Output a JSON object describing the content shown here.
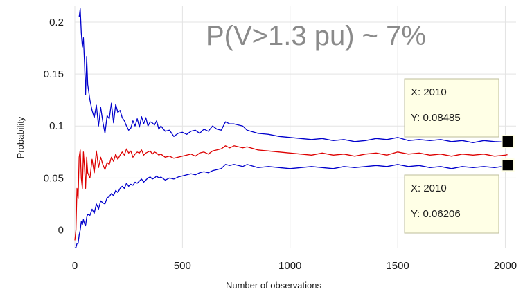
{
  "chart_data": {
    "type": "line",
    "title": "",
    "xlabel": "Number of observations",
    "ylabel": "Probability",
    "xlim": [
      0,
      2050
    ],
    "ylim": [
      -0.017,
      0.216
    ],
    "x_ticks": [
      0,
      500,
      1000,
      1500,
      2000
    ],
    "x_tick_labels": [
      "0",
      "500",
      "1000",
      "1500",
      "2000"
    ],
    "y_ticks": [
      0,
      0.05,
      0.1,
      0.15,
      0.2
    ],
    "y_tick_labels": [
      "0",
      "0.05",
      "0.1",
      "0.15",
      "0.2"
    ],
    "grid": true,
    "annotation": "P(V>1.3 pu) ~ 7%",
    "colors": {
      "upper": "#0000cc",
      "estimate": "#dd0000",
      "lower": "#0000cc",
      "grid": "#e3e3e3",
      "datatip_bg": "#ffffe6",
      "datatip_border": "#bdbd9a",
      "marker": "#000000"
    },
    "series": [
      {
        "key": "upper",
        "x": [
          20,
          25,
          30,
          35,
          40,
          45,
          50,
          55,
          60,
          70,
          80,
          90,
          100,
          110,
          120,
          130,
          140,
          150,
          160,
          170,
          180,
          190,
          200,
          210,
          220,
          230,
          240,
          250,
          260,
          270,
          280,
          290,
          300,
          310,
          320,
          330,
          340,
          350,
          360,
          370,
          380,
          390,
          400,
          420,
          440,
          460,
          480,
          500,
          520,
          540,
          560,
          580,
          600,
          620,
          640,
          660,
          680,
          700,
          720,
          740,
          760,
          780,
          800,
          850,
          900,
          950,
          1000,
          1050,
          1100,
          1150,
          1200,
          1250,
          1300,
          1350,
          1400,
          1450,
          1500,
          1550,
          1600,
          1650,
          1700,
          1750,
          1800,
          1850,
          1900,
          1950,
          2000,
          2010
        ],
        "y": [
          0.205,
          0.213,
          0.19,
          0.176,
          0.185,
          0.16,
          0.13,
          0.167,
          0.14,
          0.125,
          0.115,
          0.108,
          0.12,
          0.1,
          0.118,
          0.104,
          0.093,
          0.11,
          0.107,
          0.122,
          0.103,
          0.121,
          0.113,
          0.115,
          0.108,
          0.105,
          0.1,
          0.096,
          0.098,
          0.105,
          0.1,
          0.107,
          0.099,
          0.109,
          0.102,
          0.108,
          0.1,
          0.104,
          0.103,
          0.101,
          0.105,
          0.097,
          0.1,
          0.095,
          0.096,
          0.09,
          0.093,
          0.094,
          0.092,
          0.095,
          0.096,
          0.093,
          0.097,
          0.095,
          0.1,
          0.097,
          0.096,
          0.104,
          0.102,
          0.102,
          0.101,
          0.1,
          0.096,
          0.093,
          0.092,
          0.09,
          0.089,
          0.088,
          0.087,
          0.088,
          0.086,
          0.087,
          0.085,
          0.086,
          0.088,
          0.087,
          0.089,
          0.086,
          0.087,
          0.086,
          0.087,
          0.085,
          0.086,
          0.084,
          0.086,
          0.085,
          0.0845,
          0.08485
        ]
      },
      {
        "key": "estimate",
        "x": [
          0,
          5,
          10,
          15,
          20,
          25,
          30,
          35,
          40,
          45,
          50,
          55,
          60,
          70,
          80,
          90,
          100,
          110,
          120,
          130,
          140,
          150,
          160,
          170,
          180,
          190,
          200,
          210,
          220,
          230,
          240,
          250,
          260,
          270,
          280,
          290,
          300,
          310,
          320,
          330,
          340,
          350,
          360,
          370,
          380,
          390,
          400,
          420,
          440,
          460,
          480,
          500,
          520,
          540,
          560,
          580,
          600,
          620,
          640,
          660,
          680,
          700,
          720,
          740,
          760,
          780,
          800,
          850,
          900,
          950,
          1000,
          1050,
          1100,
          1150,
          1200,
          1250,
          1300,
          1350,
          1400,
          1450,
          1500,
          1550,
          1600,
          1650,
          1700,
          1750,
          1800,
          1850,
          1900,
          1950,
          2000,
          2010
        ],
        "y": [
          -0.01,
          0.0,
          0.04,
          0.03,
          0.07,
          0.077,
          0.05,
          0.04,
          0.075,
          0.06,
          0.04,
          0.07,
          0.055,
          0.05,
          0.068,
          0.055,
          0.076,
          0.06,
          0.07,
          0.063,
          0.058,
          0.065,
          0.063,
          0.07,
          0.066,
          0.073,
          0.068,
          0.072,
          0.075,
          0.072,
          0.078,
          0.074,
          0.076,
          0.07,
          0.073,
          0.075,
          0.074,
          0.077,
          0.072,
          0.074,
          0.075,
          0.076,
          0.073,
          0.075,
          0.074,
          0.072,
          0.073,
          0.07,
          0.071,
          0.069,
          0.07,
          0.071,
          0.072,
          0.073,
          0.071,
          0.074,
          0.075,
          0.073,
          0.076,
          0.077,
          0.078,
          0.081,
          0.079,
          0.081,
          0.08,
          0.079,
          0.08,
          0.077,
          0.076,
          0.075,
          0.074,
          0.073,
          0.072,
          0.074,
          0.072,
          0.073,
          0.071,
          0.073,
          0.074,
          0.072,
          0.075,
          0.073,
          0.074,
          0.072,
          0.073,
          0.071,
          0.073,
          0.072,
          0.073,
          0.071,
          0.072,
          0.0725
        ]
      },
      {
        "key": "lower",
        "x": [
          0,
          5,
          10,
          15,
          20,
          25,
          30,
          35,
          40,
          45,
          50,
          55,
          60,
          70,
          80,
          90,
          100,
          110,
          120,
          130,
          140,
          150,
          160,
          170,
          180,
          190,
          200,
          210,
          220,
          230,
          240,
          250,
          260,
          270,
          280,
          290,
          300,
          310,
          320,
          330,
          340,
          350,
          360,
          370,
          380,
          390,
          400,
          420,
          440,
          460,
          480,
          500,
          520,
          540,
          560,
          580,
          600,
          620,
          640,
          660,
          680,
          700,
          720,
          740,
          760,
          780,
          800,
          850,
          900,
          950,
          1000,
          1050,
          1100,
          1150,
          1200,
          1250,
          1300,
          1350,
          1400,
          1450,
          1500,
          1550,
          1600,
          1650,
          1700,
          1750,
          1800,
          1850,
          1900,
          1950,
          2000,
          2010
        ],
        "y": [
          -0.017,
          -0.017,
          -0.013,
          -0.013,
          -0.005,
          0.0,
          0.008,
          0.005,
          0.01,
          0.006,
          0.004,
          0.012,
          0.015,
          0.014,
          0.02,
          0.016,
          0.025,
          0.02,
          0.028,
          0.026,
          0.025,
          0.031,
          0.032,
          0.035,
          0.033,
          0.038,
          0.036,
          0.04,
          0.042,
          0.04,
          0.045,
          0.042,
          0.044,
          0.043,
          0.046,
          0.045,
          0.047,
          0.049,
          0.046,
          0.048,
          0.05,
          0.051,
          0.049,
          0.05,
          0.052,
          0.05,
          0.051,
          0.048,
          0.05,
          0.049,
          0.051,
          0.052,
          0.053,
          0.054,
          0.053,
          0.055,
          0.056,
          0.055,
          0.057,
          0.058,
          0.059,
          0.063,
          0.062,
          0.063,
          0.062,
          0.061,
          0.063,
          0.06,
          0.061,
          0.06,
          0.059,
          0.06,
          0.061,
          0.06,
          0.059,
          0.061,
          0.06,
          0.061,
          0.062,
          0.061,
          0.063,
          0.061,
          0.062,
          0.06,
          0.061,
          0.059,
          0.061,
          0.06,
          0.061,
          0.06,
          0.0615,
          0.06206
        ]
      }
    ],
    "datatips": [
      {
        "key": "upper",
        "x_label": "X: 2010",
        "y_label": "Y: 0.08485",
        "x": 2010,
        "y": 0.08485
      },
      {
        "key": "lower",
        "x_label": "X: 2010",
        "y_label": "Y: 0.06206",
        "x": 2010,
        "y": 0.06206
      }
    ]
  }
}
